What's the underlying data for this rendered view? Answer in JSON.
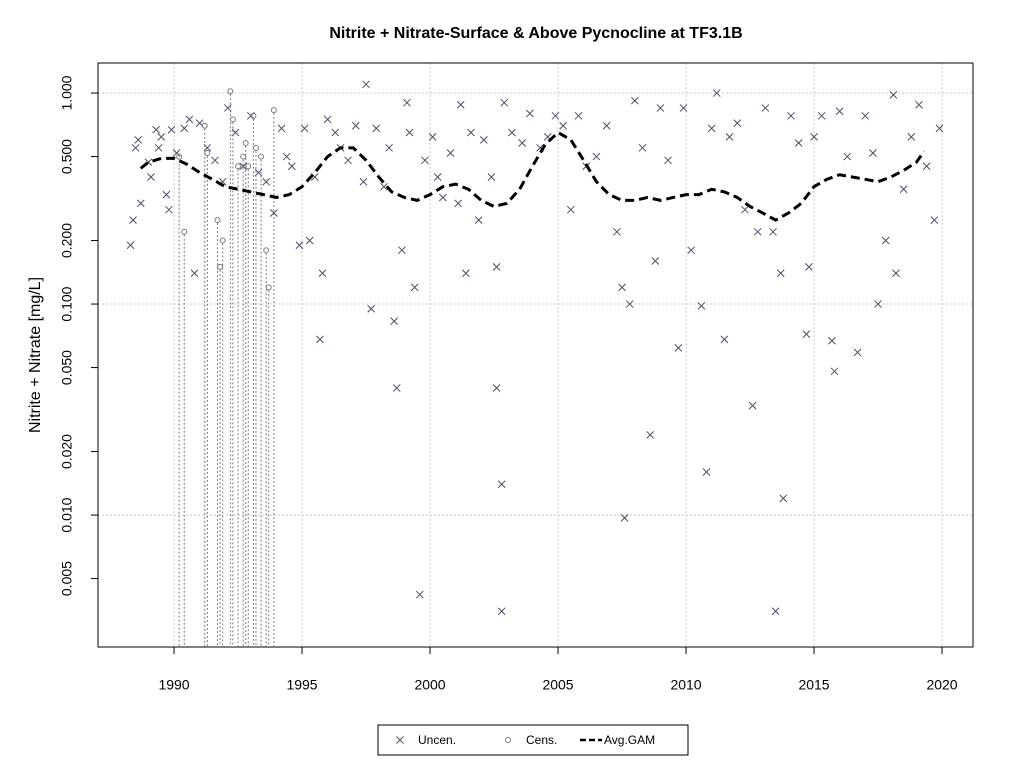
{
  "chart_data": {
    "type": "scatter",
    "title": "Nitrite + Nitrate-Surface & Above Pycnocline at TF3.1B",
    "y_label": "Nitrite + Nitrate [mg/L]",
    "log_y": true,
    "grid": true,
    "legend": "bottom",
    "xlim": [
      1987.03,
      2021.21
    ],
    "ylim": [
      0.00237,
      1.388
    ],
    "xticks": [
      1990,
      1995,
      2000,
      2005,
      2010,
      2015,
      2020
    ],
    "yticks": [
      {
        "value": 0.005,
        "label": "0.005"
      },
      {
        "value": 0.01,
        "label": "0.010"
      },
      {
        "value": 0.02,
        "label": "0.020"
      },
      {
        "value": 0.05,
        "label": "0.050"
      },
      {
        "value": 0.1,
        "label": "0.100"
      },
      {
        "value": 0.2,
        "label": "0.200"
      },
      {
        "value": 0.5,
        "label": "0.500"
      },
      {
        "value": 1,
        "label": "1.000"
      }
    ],
    "ygrid": [
      0.01,
      0.1,
      1
    ],
    "series": [
      {
        "name": "Uncen.",
        "marker": "x",
        "color": "#4a5068",
        "x": [
          1988.3,
          1988.4,
          1988.5,
          1988.6,
          1988.7,
          1989.0,
          1989.1,
          1989.3,
          1989.4,
          1989.5,
          1989.7,
          1989.8,
          1989.9,
          1990.1,
          1990.4,
          1990.6,
          1990.8,
          1991.0,
          1991.3,
          1991.6,
          1991.9,
          1992.1,
          1992.4,
          1992.7,
          1993.0,
          1993.3,
          1993.6,
          1993.9,
          1994.2,
          1994.4,
          1994.6,
          1994.9,
          1995.1,
          1995.3,
          1995.5,
          1995.7,
          1995.8,
          1996.0,
          1996.3,
          1996.5,
          1996.8,
          1997.1,
          1997.4,
          1997.5,
          1997.7,
          1997.9,
          1998.2,
          1998.4,
          1998.6,
          1998.7,
          1998.9,
          1999.1,
          1999.2,
          1999.4,
          1999.6,
          1999.8,
          2000.1,
          2000.3,
          2000.5,
          2000.8,
          2001.1,
          2001.2,
          2001.4,
          2001.6,
          2001.9,
          2002.1,
          2002.4,
          2002.6,
          2002.6,
          2002.8,
          2002.8,
          2002.9,
          2003.2,
          2003.6,
          2003.9,
          2004.3,
          2004.6,
          2004.9,
          2005.2,
          2005.5,
          2005.8,
          2006.1,
          2006.5,
          2006.9,
          2007.3,
          2007.5,
          2007.6,
          2007.8,
          2008.0,
          2008.3,
          2008.6,
          2008.8,
          2009.0,
          2009.3,
          2009.7,
          2009.9,
          2010.2,
          2010.6,
          2010.8,
          2011.0,
          2011.2,
          2011.5,
          2011.7,
          2012.0,
          2012.3,
          2012.6,
          2012.8,
          2013.1,
          2013.4,
          2013.5,
          2013.7,
          2013.8,
          2014.1,
          2014.4,
          2014.7,
          2014.8,
          2015.0,
          2015.3,
          2015.7,
          2015.8,
          2016.0,
          2016.3,
          2016.7,
          2017.0,
          2017.3,
          2017.5,
          2017.8,
          2018.1,
          2018.2,
          2018.5,
          2018.8,
          2019.1,
          2019.4,
          2019.7,
          2019.9
        ],
        "values": [
          0.19,
          0.25,
          0.55,
          0.6,
          0.3,
          0.47,
          0.4,
          0.67,
          0.55,
          0.62,
          0.33,
          0.28,
          0.67,
          0.52,
          0.68,
          0.75,
          0.14,
          0.72,
          0.55,
          0.48,
          0.38,
          0.85,
          0.65,
          0.45,
          0.78,
          0.42,
          0.38,
          0.27,
          0.68,
          0.5,
          0.45,
          0.19,
          0.68,
          0.2,
          0.4,
          0.068,
          0.14,
          0.75,
          0.65,
          0.55,
          0.48,
          0.7,
          0.38,
          1.1,
          0.095,
          0.68,
          0.36,
          0.55,
          0.083,
          0.04,
          0.18,
          0.9,
          0.65,
          0.12,
          0.0042,
          0.48,
          0.62,
          0.4,
          0.32,
          0.52,
          0.3,
          0.88,
          0.14,
          0.65,
          0.25,
          0.6,
          0.4,
          0.15,
          0.04,
          0.014,
          0.0035,
          0.9,
          0.65,
          0.58,
          0.8,
          0.55,
          0.62,
          0.78,
          0.7,
          0.28,
          0.78,
          0.45,
          0.5,
          0.7,
          0.22,
          0.12,
          0.0097,
          0.1,
          0.92,
          0.55,
          0.024,
          0.16,
          0.85,
          0.48,
          0.062,
          0.85,
          0.18,
          0.098,
          0.016,
          0.68,
          1.0,
          0.068,
          0.62,
          0.72,
          0.28,
          0.033,
          0.22,
          0.85,
          0.22,
          0.0035,
          0.14,
          0.012,
          0.78,
          0.58,
          0.072,
          0.15,
          0.62,
          0.78,
          0.067,
          0.048,
          0.82,
          0.5,
          0.059,
          0.78,
          0.52,
          0.1,
          0.2,
          0.98,
          0.14,
          0.35,
          0.62,
          0.88,
          0.45,
          0.25,
          0.68
        ]
      },
      {
        "name": "Cens.",
        "marker": "o",
        "color": "#7a7a7a",
        "x": [
          1990.2,
          1990.4,
          1991.2,
          1991.3,
          1991.7,
          1991.8,
          1991.9,
          1992.2,
          1992.3,
          1992.5,
          1992.7,
          1992.8,
          1992.9,
          1993.1,
          1993.2,
          1993.4,
          1993.6,
          1993.7,
          1993.9
        ],
        "values": [
          0.5,
          0.22,
          0.7,
          0.52,
          0.25,
          0.15,
          0.2,
          1.02,
          0.75,
          0.45,
          0.5,
          0.58,
          0.45,
          0.78,
          0.55,
          0.5,
          0.18,
          0.12,
          0.83
        ]
      },
      {
        "name": "Avg.GAM",
        "marker": "dashed-line",
        "color": "#000000",
        "x": [
          1988.7,
          1989,
          1989.5,
          1990,
          1990.5,
          1991,
          1991.5,
          1992,
          1992.5,
          1993,
          1993.5,
          1994,
          1994.5,
          1995,
          1995.5,
          1996,
          1996.5,
          1997,
          1997.5,
          1998,
          1998.5,
          1999,
          1999.5,
          2000,
          2000.5,
          2001,
          2001.5,
          2002,
          2002.5,
          2003,
          2003.5,
          2004,
          2004.5,
          2005,
          2005.5,
          2006,
          2006.5,
          2007,
          2007.5,
          2008,
          2008.5,
          2009,
          2009.5,
          2010,
          2010.5,
          2011,
          2011.5,
          2012,
          2012.5,
          2013,
          2013.5,
          2014,
          2014.5,
          2015,
          2015.5,
          2016,
          2016.5,
          2017,
          2017.5,
          2018,
          2018.5,
          2019,
          2019.3
        ],
        "values": [
          0.44,
          0.47,
          0.49,
          0.49,
          0.46,
          0.42,
          0.39,
          0.36,
          0.35,
          0.34,
          0.33,
          0.32,
          0.33,
          0.36,
          0.42,
          0.5,
          0.55,
          0.55,
          0.48,
          0.4,
          0.34,
          0.32,
          0.31,
          0.33,
          0.36,
          0.37,
          0.35,
          0.31,
          0.29,
          0.3,
          0.35,
          0.45,
          0.57,
          0.65,
          0.6,
          0.48,
          0.38,
          0.33,
          0.31,
          0.31,
          0.32,
          0.31,
          0.32,
          0.33,
          0.33,
          0.35,
          0.34,
          0.32,
          0.29,
          0.27,
          0.25,
          0.27,
          0.3,
          0.36,
          0.39,
          0.41,
          0.4,
          0.39,
          0.38,
          0.4,
          0.43,
          0.47,
          0.53
        ]
      }
    ]
  }
}
